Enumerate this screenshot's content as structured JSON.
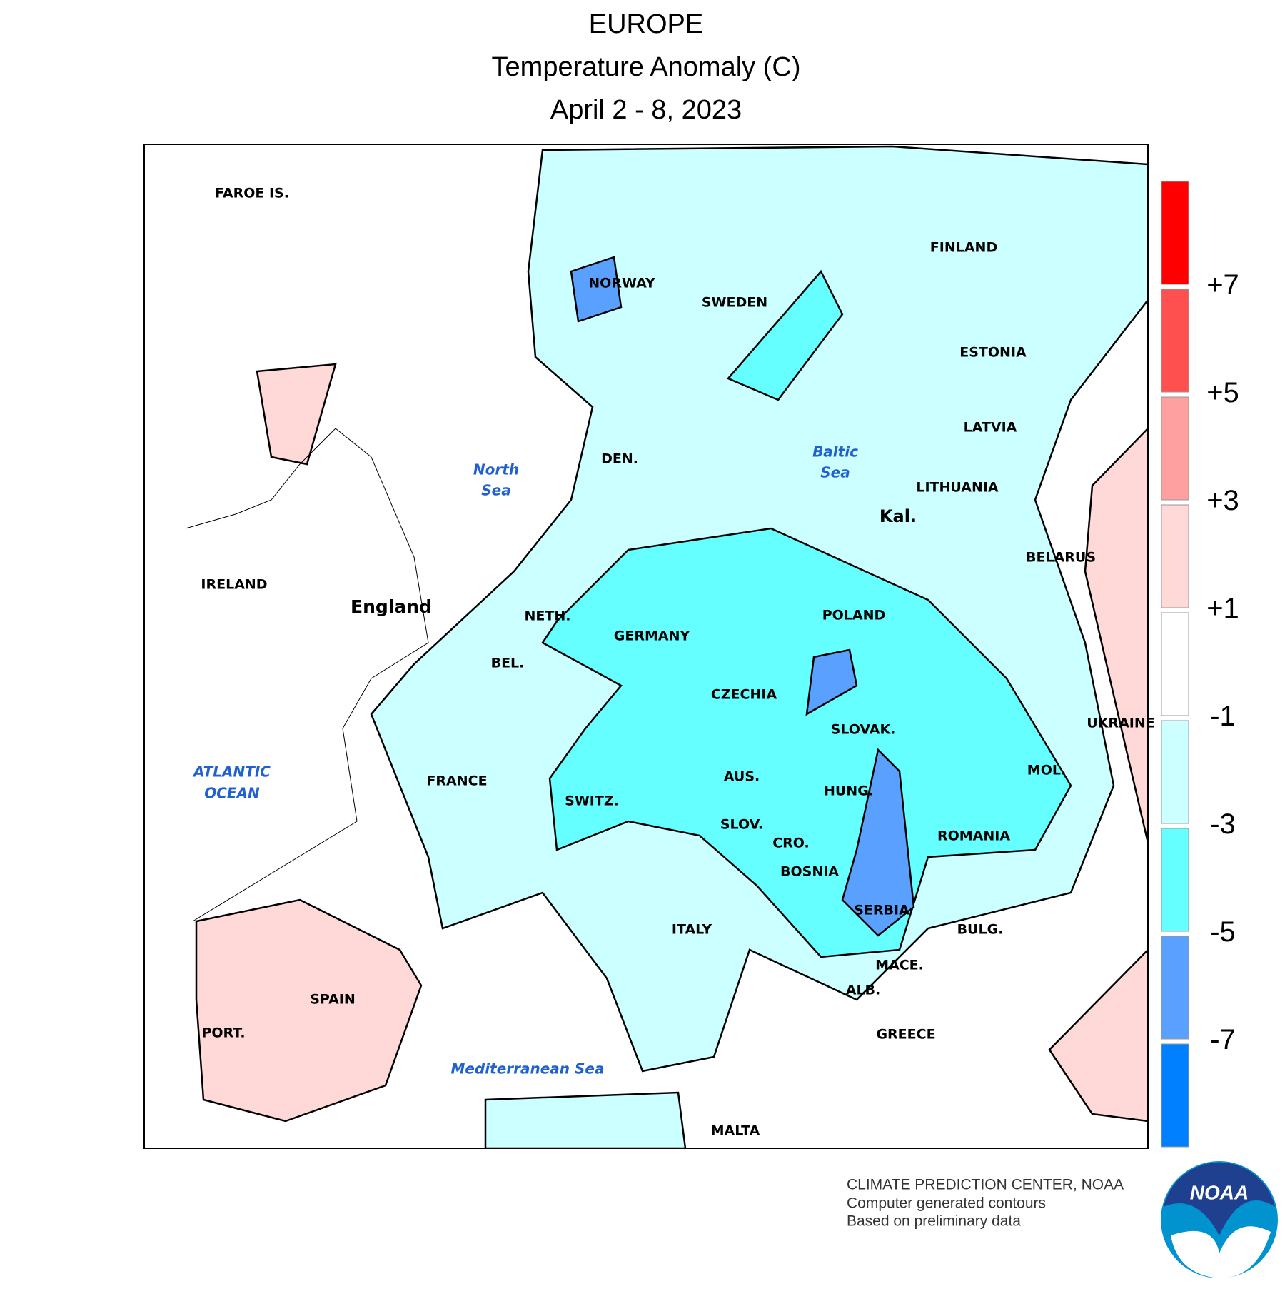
{
  "header": {
    "title": "EUROPE",
    "subtitle": "Temperature Anomaly (C)",
    "dates": "April 2 - 8, 2023"
  },
  "map": {
    "labels": [
      "FAROE IS.",
      "FINLAND",
      "NORWAY",
      "SWEDEN",
      "ESTONIA",
      "LATVIA",
      "DEN.",
      "LITHUANIA",
      "Kal.",
      "BELARUS",
      "IRELAND",
      "England",
      "POLAND",
      "NETH.",
      "GERMANY",
      "BEL.",
      "CZECHIA",
      "UKRAINE",
      "SLOVAK.",
      "FRANCE",
      "AUS.",
      "MOL.",
      "HUNG.",
      "SWITZ.",
      "SLOV.",
      "ROMANIA",
      "CRO.",
      "BOSNIA",
      "SERBIA",
      "ITALY",
      "BULG.",
      "MACE.",
      "ALB.",
      "SPAIN",
      "PORT.",
      "GREECE",
      "MALTA"
    ],
    "water_labels": [
      [
        "North",
        "Sea"
      ],
      [
        "Baltic",
        "Sea"
      ],
      [
        "ATLANTIC",
        "OCEAN"
      ],
      [
        "Mediterranean Sea"
      ]
    ]
  },
  "legend": {
    "colors": [
      "#ff0000",
      "#ff5050",
      "#ffa0a0",
      "#ffd8d8",
      "#ffffff",
      "#ccffff",
      "#66ffff",
      "#5aa0ff",
      "#0080ff"
    ],
    "labels": [
      "+7",
      "+5",
      "+3",
      "+1",
      "-1",
      "-3",
      "-5",
      "-7"
    ]
  },
  "credits": {
    "lines": [
      "CLIMATE PREDICTION CENTER, NOAA",
      "Computer generated contours",
      "Based on preliminary data"
    ],
    "logo": "NOAA"
  }
}
